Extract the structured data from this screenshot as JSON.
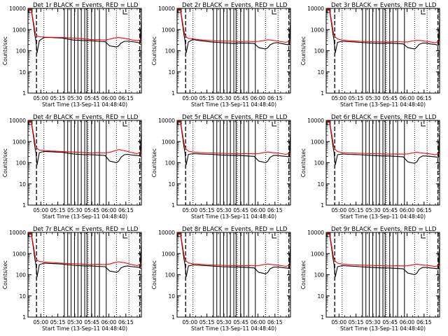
{
  "panels": [
    {
      "title": "Det 1r BLACK = Events, RED = LLD"
    },
    {
      "title": "Det 2r BLACK = Events, RED = LLD"
    },
    {
      "title": "Det 3r BLACK = Events, RED = LLD"
    },
    {
      "title": "Det 4r BLACK = Events, RED = LLD"
    },
    {
      "title": "Det 5r BLACK = Events, RED = LLD"
    },
    {
      "title": "Det 6r BLACK = Events, RED = LLD"
    },
    {
      "title": "Det 7r BLACK = Events, RED = LLD"
    },
    {
      "title": "Det 8r BLACK = Events, RED = LLD"
    },
    {
      "title": "Det 9r BLACK = Events, RED = LLD"
    }
  ],
  "chart_data": {
    "type": "line",
    "layout": "3x3 small multiples",
    "ylabel": "Counts/sec",
    "xlabel": "Start Time (13-Sep-11 04:48:40)",
    "y_scale": "log",
    "ylim": [
      1,
      10000
    ],
    "y_ticks": [
      "1",
      "10",
      "100",
      "1000",
      "10000"
    ],
    "x_start": "04:48:40",
    "xlim_minutes": [
      0,
      100
    ],
    "x_ticks": [
      {
        "label": "05:00",
        "minute": 11.3
      },
      {
        "label": "05:15",
        "minute": 26.3
      },
      {
        "label": "05:30",
        "minute": 41.3
      },
      {
        "label": "05:45",
        "minute": 56.3
      },
      {
        "label": "06:00",
        "minute": 71.3
      },
      {
        "label": "06:15",
        "minute": 86.3
      }
    ],
    "series_colors": {
      "events": "#000000",
      "lld": "#ff0000"
    },
    "dashed_markers_minutes": [
      7.5,
      98.5
    ],
    "dotted_markers_minutes": [
      14.0,
      53.0,
      78.0,
      89.0
    ],
    "solid_markers_minutes": [
      32,
      35,
      38,
      41,
      44,
      47,
      50,
      52,
      56,
      59,
      63,
      69
    ],
    "panels": [
      {
        "name": "Det 1r",
        "events": {
          "x": [
            0,
            3,
            5,
            6,
            7,
            7.5,
            8,
            10,
            14,
            20,
            30,
            40,
            50,
            55,
            62,
            68,
            72,
            75,
            78,
            80,
            82,
            85,
            88,
            92,
            96,
            99,
            100
          ],
          "y": [
            9000,
            8000,
            1500,
            600,
            300,
            150,
            80,
            300,
            420,
            420,
            400,
            320,
            300,
            300,
            280,
            270,
            170,
            160,
            150,
            170,
            230,
            280,
            280,
            270,
            250,
            230,
            3500
          ]
        },
        "lld": {
          "x": [
            0,
            3,
            5,
            6,
            7,
            8,
            10,
            14,
            20,
            30,
            40,
            50,
            55,
            62,
            68,
            72,
            76,
            80,
            84,
            88,
            92,
            96,
            100
          ],
          "y": [
            9500,
            8500,
            2000,
            900,
            600,
            500,
            460,
            440,
            430,
            420,
            400,
            360,
            340,
            330,
            320,
            350,
            400,
            420,
            390,
            360,
            320,
            300,
            330
          ]
        }
      },
      {
        "name": "Det 2r",
        "events": {
          "x": [
            0,
            3,
            5,
            6,
            7,
            7.5,
            8,
            10,
            14,
            20,
            30,
            40,
            50,
            55,
            62,
            68,
            72,
            75,
            78,
            80,
            82,
            85,
            88,
            92,
            96,
            99,
            100
          ],
          "y": [
            9000,
            8000,
            1500,
            600,
            300,
            150,
            80,
            260,
            340,
            300,
            260,
            240,
            220,
            230,
            230,
            220,
            140,
            130,
            120,
            140,
            190,
            230,
            240,
            220,
            200,
            190,
            3000
          ]
        },
        "lld": {
          "x": [
            0,
            3,
            5,
            6,
            7,
            8,
            10,
            14,
            20,
            30,
            40,
            50,
            55,
            62,
            68,
            72,
            76,
            80,
            84,
            88,
            92,
            96,
            100
          ],
          "y": [
            9500,
            8500,
            2000,
            900,
            550,
            450,
            380,
            360,
            330,
            300,
            290,
            280,
            270,
            280,
            270,
            280,
            300,
            330,
            310,
            290,
            270,
            250,
            300
          ]
        }
      },
      {
        "name": "Det 3r",
        "events": {
          "x": [
            0,
            3,
            5,
            6,
            7,
            7.5,
            8,
            10,
            14,
            20,
            30,
            40,
            50,
            55,
            62,
            68,
            72,
            75,
            78,
            80,
            82,
            85,
            88,
            92,
            96,
            99,
            100
          ],
          "y": [
            9000,
            8000,
            1500,
            600,
            300,
            150,
            80,
            250,
            280,
            270,
            250,
            230,
            220,
            230,
            220,
            210,
            140,
            130,
            120,
            150,
            200,
            230,
            230,
            210,
            200,
            180,
            3000
          ]
        },
        "lld": {
          "x": [
            0,
            3,
            5,
            6,
            7,
            8,
            10,
            14,
            20,
            30,
            40,
            50,
            55,
            62,
            68,
            72,
            76,
            80,
            84,
            88,
            92,
            96,
            100
          ],
          "y": [
            9500,
            8500,
            2000,
            900,
            550,
            440,
            360,
            320,
            300,
            280,
            270,
            260,
            260,
            270,
            260,
            260,
            290,
            310,
            300,
            280,
            260,
            240,
            290
          ]
        }
      },
      {
        "name": "Det 4r",
        "events": {
          "x": [
            0,
            3,
            5,
            6,
            7,
            7.5,
            8,
            10,
            14,
            20,
            30,
            40,
            50,
            55,
            62,
            68,
            72,
            75,
            78,
            80,
            82,
            85,
            88,
            92,
            96,
            99,
            100
          ],
          "y": [
            9000,
            8000,
            1500,
            600,
            300,
            150,
            80,
            300,
            340,
            330,
            310,
            260,
            240,
            240,
            230,
            220,
            120,
            110,
            100,
            120,
            180,
            240,
            250,
            230,
            220,
            210,
            3500
          ]
        },
        "lld": {
          "x": [
            0,
            3,
            5,
            6,
            7,
            8,
            10,
            14,
            20,
            30,
            40,
            50,
            55,
            62,
            68,
            72,
            76,
            80,
            84,
            88,
            92,
            96,
            100
          ],
          "y": [
            9500,
            8500,
            2000,
            900,
            600,
            480,
            400,
            380,
            360,
            340,
            320,
            300,
            290,
            300,
            290,
            310,
            360,
            420,
            380,
            340,
            300,
            270,
            320
          ]
        }
      },
      {
        "name": "Det 5r",
        "events": {
          "x": [
            0,
            3,
            5,
            6,
            7,
            7.5,
            8,
            10,
            14,
            20,
            30,
            40,
            50,
            55,
            62,
            68,
            72,
            75,
            78,
            80,
            82,
            85,
            88,
            92,
            96,
            99,
            100
          ],
          "y": [
            9000,
            8000,
            1500,
            600,
            300,
            150,
            80,
            250,
            270,
            260,
            250,
            230,
            220,
            220,
            210,
            200,
            120,
            110,
            100,
            120,
            180,
            220,
            220,
            210,
            200,
            190,
            2800
          ]
        },
        "lld": {
          "x": [
            0,
            3,
            5,
            6,
            7,
            8,
            10,
            14,
            20,
            30,
            40,
            50,
            55,
            62,
            68,
            72,
            76,
            80,
            84,
            88,
            92,
            96,
            100
          ],
          "y": [
            9500,
            8500,
            2000,
            900,
            550,
            430,
            350,
            320,
            300,
            290,
            280,
            270,
            265,
            270,
            265,
            270,
            300,
            320,
            300,
            285,
            270,
            250,
            290
          ]
        }
      },
      {
        "name": "Det 6r",
        "events": {
          "x": [
            0,
            3,
            5,
            6,
            7,
            7.5,
            8,
            10,
            14,
            20,
            30,
            40,
            50,
            55,
            62,
            68,
            72,
            75,
            78,
            80,
            82,
            85,
            88,
            92,
            96,
            99,
            100
          ],
          "y": [
            9000,
            8000,
            1500,
            600,
            300,
            150,
            80,
            240,
            260,
            250,
            240,
            220,
            210,
            210,
            200,
            190,
            110,
            100,
            95,
            110,
            170,
            210,
            210,
            200,
            190,
            180,
            2600
          ]
        },
        "lld": {
          "x": [
            0,
            3,
            5,
            6,
            7,
            8,
            10,
            14,
            20,
            30,
            40,
            50,
            55,
            62,
            68,
            72,
            76,
            80,
            84,
            88,
            92,
            96,
            100
          ],
          "y": [
            9500,
            8500,
            2000,
            900,
            550,
            420,
            340,
            300,
            290,
            280,
            270,
            260,
            255,
            260,
            255,
            260,
            290,
            310,
            290,
            275,
            260,
            240,
            280
          ]
        }
      },
      {
        "name": "Det 7r",
        "events": {
          "x": [
            0,
            3,
            5,
            6,
            7,
            7.5,
            8,
            10,
            14,
            20,
            30,
            40,
            50,
            55,
            62,
            68,
            72,
            75,
            78,
            80,
            82,
            85,
            88,
            92,
            96,
            99,
            100
          ],
          "y": [
            9000,
            8000,
            1500,
            600,
            300,
            150,
            80,
            300,
            350,
            340,
            320,
            280,
            260,
            260,
            250,
            240,
            150,
            140,
            130,
            150,
            210,
            250,
            260,
            240,
            230,
            220,
            3500
          ]
        },
        "lld": {
          "x": [
            0,
            3,
            5,
            6,
            7,
            8,
            10,
            14,
            20,
            30,
            40,
            50,
            55,
            62,
            68,
            72,
            76,
            80,
            84,
            88,
            92,
            96,
            100
          ],
          "y": [
            9500,
            8500,
            2000,
            900,
            600,
            500,
            420,
            400,
            380,
            350,
            330,
            310,
            300,
            310,
            300,
            320,
            370,
            410,
            380,
            340,
            300,
            270,
            320
          ]
        }
      },
      {
        "name": "Det 8r",
        "events": {
          "x": [
            0,
            3,
            5,
            6,
            7,
            7.5,
            8,
            10,
            14,
            20,
            30,
            40,
            50,
            55,
            62,
            68,
            72,
            75,
            78,
            80,
            82,
            85,
            88,
            92,
            96,
            99,
            100
          ],
          "y": [
            9000,
            8000,
            1500,
            600,
            300,
            150,
            80,
            260,
            290,
            280,
            260,
            240,
            230,
            230,
            220,
            210,
            130,
            120,
            110,
            130,
            190,
            230,
            230,
            220,
            210,
            200,
            3000
          ]
        },
        "lld": {
          "x": [
            0,
            3,
            5,
            6,
            7,
            8,
            10,
            14,
            20,
            30,
            40,
            50,
            55,
            62,
            68,
            72,
            76,
            80,
            84,
            88,
            92,
            96,
            100
          ],
          "y": [
            9500,
            8500,
            2000,
            900,
            550,
            440,
            360,
            330,
            310,
            290,
            280,
            270,
            265,
            270,
            265,
            270,
            300,
            320,
            300,
            285,
            270,
            250,
            290
          ]
        }
      },
      {
        "name": "Det 9r",
        "events": {
          "x": [
            0,
            3,
            5,
            6,
            7,
            7.5,
            8,
            10,
            14,
            20,
            30,
            40,
            50,
            55,
            62,
            68,
            72,
            75,
            78,
            80,
            82,
            85,
            88,
            92,
            96,
            99,
            100
          ],
          "y": [
            9000,
            8000,
            1500,
            600,
            300,
            150,
            80,
            240,
            270,
            260,
            240,
            220,
            210,
            210,
            200,
            190,
            120,
            110,
            100,
            120,
            180,
            220,
            220,
            210,
            200,
            190,
            2800
          ]
        },
        "lld": {
          "x": [
            0,
            3,
            5,
            6,
            7,
            8,
            10,
            14,
            20,
            30,
            40,
            50,
            55,
            62,
            68,
            72,
            76,
            80,
            84,
            88,
            92,
            96,
            100
          ],
          "y": [
            9500,
            8500,
            2000,
            900,
            550,
            430,
            350,
            320,
            300,
            285,
            275,
            265,
            260,
            265,
            260,
            265,
            295,
            315,
            295,
            280,
            265,
            245,
            285
          ]
        }
      }
    ]
  }
}
